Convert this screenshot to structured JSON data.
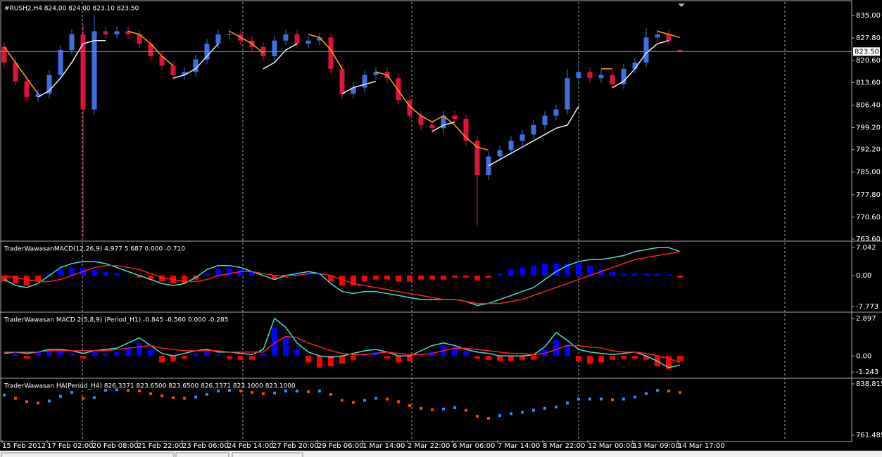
{
  "chart_data": [
    {
      "type": "candlestick",
      "title": "#RUSH2,H4  824.00 824.00 823.10 823.50",
      "categories": [
        "15 Feb 2012",
        null,
        null,
        null,
        "17 Feb 02:00",
        null,
        null,
        null,
        "20 Feb 08:00",
        null,
        null,
        null,
        "21 Feb 22:00",
        null,
        null,
        null,
        "23 Feb 06:00",
        null,
        null,
        null,
        "24 Feb 14:00",
        null,
        null,
        null,
        "27 Feb 20:00",
        null,
        null,
        null,
        "29 Feb 06:00",
        null,
        null,
        null,
        "1 Mar 14:00",
        null,
        null,
        null,
        "2 Mar 22:00",
        null,
        null,
        null,
        "6 Mar 06:00",
        null,
        null,
        null,
        "7 Mar 14:00",
        null,
        null,
        null,
        "8 Mar 22:00",
        null,
        null,
        null,
        "12 Mar 00:00",
        null,
        null,
        null,
        "13 Mar 09:00",
        null,
        null,
        null,
        "14 Mar 17:00"
      ],
      "open": [
        825,
        820,
        814,
        809,
        810,
        816,
        824,
        829,
        805,
        830,
        829,
        830,
        829,
        826,
        822,
        819,
        816,
        817,
        821,
        826,
        829,
        829,
        827,
        825,
        822,
        827,
        829,
        826,
        827,
        828,
        818,
        810,
        812,
        816,
        817,
        815,
        808,
        803,
        800,
        799,
        803,
        802,
        795,
        784,
        790,
        792,
        795,
        797,
        800,
        803,
        805,
        815,
        817,
        815,
        816,
        813,
        818,
        820,
        828,
        829,
        824
      ],
      "high": [
        826.5,
        821.5,
        815.5,
        811.5,
        817.5,
        825.5,
        830.5,
        832,
        835,
        831.5,
        831.5,
        831.5,
        830.5,
        827.5,
        823.5,
        820.5,
        818.5,
        822.5,
        827.5,
        830.5,
        830.5,
        830.5,
        828.5,
        826.5,
        828.5,
        830.5,
        830.5,
        828.5,
        829.5,
        829.5,
        819.5,
        813.5,
        817.5,
        818.5,
        818.5,
        816.5,
        809.5,
        804.5,
        801.5,
        804.5,
        804.5,
        803.5,
        796.5,
        791.5,
        793.5,
        796.5,
        798.5,
        801.5,
        804.5,
        806.5,
        818,
        820,
        818.5,
        818,
        817.5,
        819.5,
        821.5,
        831,
        830.5,
        830.5,
        824
      ],
      "low": [
        818.5,
        812.5,
        807.5,
        807.5,
        808.5,
        814.5,
        822.5,
        764,
        803.5,
        827.5,
        827.5,
        827.5,
        824.5,
        820.5,
        817.5,
        814.5,
        814.5,
        815.5,
        819.5,
        824.5,
        827.5,
        825.5,
        823.5,
        820.5,
        820.5,
        825.5,
        824.5,
        824.5,
        825.5,
        816.5,
        808.5,
        808.5,
        810.5,
        814.5,
        813.5,
        806.5,
        801.5,
        798.5,
        797.5,
        797.5,
        800.5,
        793.5,
        768,
        782.5,
        788.5,
        790.5,
        793.5,
        795.5,
        798.5,
        801.5,
        803.5,
        813.5,
        813.5,
        813.5,
        811.5,
        811.5,
        816.5,
        818.5,
        826.5,
        825.5,
        823.1
      ],
      "close": [
        820,
        814,
        809,
        810,
        816,
        824,
        829,
        805,
        830,
        829,
        830,
        829,
        826,
        822,
        819,
        816,
        817,
        821,
        826,
        829,
        829,
        827,
        825,
        822,
        827,
        829,
        826,
        827,
        828,
        818,
        810,
        812,
        816,
        817,
        815,
        808,
        803,
        800,
        799,
        803,
        802,
        795,
        784,
        790,
        792,
        795,
        797,
        800,
        803,
        805,
        815,
        817,
        815,
        816,
        813,
        818,
        820,
        828,
        829,
        827,
        823.5
      ],
      "up_color": "#3f6fe0",
      "down_color": "#dc143c",
      "overlays": [
        {
          "color": "#ffa500",
          "values": [
            825,
            820,
            815,
            810,
            null,
            null,
            null,
            null,
            null,
            null,
            null,
            830,
            829,
            826,
            822,
            819,
            null,
            null,
            null,
            null,
            830,
            828,
            826,
            823,
            null,
            null,
            null,
            829,
            828,
            824,
            818,
            null,
            null,
            817,
            816,
            811,
            806,
            803,
            801,
            803,
            800,
            796,
            793,
            792,
            null,
            null,
            null,
            null,
            null,
            null,
            null,
            null,
            null,
            818,
            818,
            null,
            null,
            null,
            830,
            829,
            828
          ]
        },
        {
          "color": "#e8f0ff",
          "values": [
            null,
            null,
            null,
            809,
            811,
            815,
            820,
            826,
            827,
            827,
            null,
            null,
            null,
            null,
            null,
            815,
            816,
            818,
            822,
            826,
            null,
            null,
            null,
            818,
            820,
            824,
            826,
            null,
            null,
            null,
            810,
            812,
            813,
            814,
            null,
            null,
            null,
            null,
            798,
            800,
            801,
            null,
            null,
            787,
            789,
            791,
            793,
            795,
            797,
            799,
            800,
            806,
            null,
            null,
            812,
            814,
            818,
            823,
            826,
            827,
            null
          ]
        }
      ],
      "last_price": {
        "value": 823.5,
        "label": "823.50"
      },
      "ylim": [
        763.15,
        839.3
      ],
      "yticks": [
        {
          "value": 835,
          "label": "835.00"
        },
        {
          "value": 827.8,
          "label": "827.80"
        },
        {
          "value": 820.6,
          "label": "820.60"
        },
        {
          "value": 813.6,
          "label": "813.60"
        },
        {
          "value": 806.4,
          "label": "806.40"
        },
        {
          "value": 799.2,
          "label": "799.20"
        },
        {
          "value": 792.2,
          "label": "792.20"
        },
        {
          "value": 785,
          "label": "785.00"
        },
        {
          "value": 777.8,
          "label": "777.80"
        },
        {
          "value": 770.6,
          "label": "770.60"
        },
        {
          "value": 763.6,
          "label": "763.60"
        }
      ]
    },
    {
      "type": "macd",
      "title": "TraderWawasanMACD(12,26,9) 4.977 5.687 0.000 -0.710",
      "histogram": {
        "up_color": "#0000ff",
        "down_color": "#ff0000",
        "values": [
          -1.5,
          -2,
          -2.5,
          -1.5,
          0.5,
          1.5,
          2,
          2,
          1.5,
          1,
          0.5,
          0,
          -0.5,
          -1,
          -1.5,
          -2,
          -2,
          -1,
          0.5,
          1.5,
          2,
          1.5,
          1,
          0,
          -1,
          -0.5,
          0.3,
          0.5,
          0.3,
          -1.5,
          -2.5,
          -2.5,
          -1.5,
          -1,
          -1,
          -1.5,
          -1.5,
          -1,
          -1,
          -1,
          -0.5,
          -0.5,
          -1.2,
          -0.5,
          0.5,
          1.5,
          2,
          2.5,
          3,
          3,
          3,
          3,
          2.5,
          1.5,
          1,
          0.5,
          0.5,
          0.5,
          0.5,
          0.3,
          -0.5
        ]
      },
      "lines": [
        {
          "color": "#40e0d0",
          "values": [
            -1,
            -2.5,
            -3,
            -2,
            0,
            2,
            3,
            3.5,
            3.5,
            3,
            2,
            1,
            0,
            -1,
            -2,
            -2.5,
            -2,
            -0.5,
            1.5,
            2.5,
            2.5,
            2,
            1,
            0,
            -1,
            0,
            0.5,
            1,
            0.5,
            -2,
            -4,
            -4.5,
            -4,
            -4,
            -4.5,
            -5,
            -5.5,
            -6,
            -6,
            -6,
            -6,
            -6.5,
            -7.5,
            -7,
            -6,
            -5,
            -4,
            -3,
            -1,
            1,
            2.5,
            3.5,
            4,
            4,
            4.5,
            5,
            6,
            6.5,
            7,
            7,
            6
          ]
        },
        {
          "color": "#ff2020",
          "values": [
            0,
            -0.5,
            -1,
            -1.5,
            -1.5,
            -1,
            0,
            1,
            2,
            2.5,
            2.5,
            2,
            1.5,
            0.5,
            -0.5,
            -1,
            -1.5,
            -1.5,
            -1,
            0,
            0.5,
            1,
            1,
            0.5,
            0,
            0,
            0,
            0.5,
            0.5,
            0,
            -1,
            -2,
            -2.5,
            -3,
            -3.5,
            -4,
            -4.5,
            -5,
            -5.5,
            -6,
            -6,
            -6.5,
            -7,
            -7,
            -7,
            -6.5,
            -6,
            -5,
            -4,
            -3,
            -2,
            -1,
            0,
            1,
            2,
            3,
            4,
            4.5,
            5,
            5.5,
            6
          ]
        }
      ],
      "ylim": [
        -8.83,
        8.27
      ],
      "yticks": [
        7.042,
        {
          "value": 0,
          "label": "0.00"
        },
        -7.773
      ]
    },
    {
      "type": "macd",
      "title": "TraderWawasan MACD 2(5,8,9) (Period_H1) -0.845 -0.560 0.000 -0.285",
      "histogram": {
        "up_color": "#0000ff",
        "down_color": "#ff0000",
        "values": [
          0,
          0.3,
          -0.2,
          0.3,
          0.4,
          0.3,
          0.2,
          -0.2,
          0.3,
          0.2,
          0.3,
          0.6,
          1,
          0.5,
          -0.5,
          -0.4,
          -0.2,
          0.2,
          0.3,
          0.1,
          -0.2,
          -0.3,
          -0.3,
          0.2,
          2.2,
          1.5,
          0.5,
          -0.5,
          -0.9,
          -0.8,
          -0.6,
          -0.3,
          0.2,
          0.3,
          -0.2,
          -0.5,
          -0.4,
          0.1,
          0.3,
          0.8,
          0.7,
          0.4,
          -0.2,
          -0.3,
          -0.4,
          -0.4,
          -0.3,
          -0.3,
          0.5,
          1.2,
          0.9,
          -0.4,
          -0.6,
          -0.5,
          -0.3,
          -0.2,
          -0.2,
          -0.3,
          -0.8,
          -1.0,
          -0.4
        ]
      },
      "lines": [
        {
          "color": "#40e0d0",
          "values": [
            0.2,
            0.3,
            0.2,
            0.3,
            0.5,
            0.5,
            0.4,
            0.2,
            0.4,
            0.5,
            0.6,
            1,
            1.4,
            0.8,
            0.2,
            0,
            0.2,
            0.4,
            0.5,
            0.3,
            0.3,
            0.2,
            0.1,
            0.5,
            2.9,
            2.2,
            1,
            0.3,
            0,
            -0.1,
            0,
            0.2,
            0.4,
            0.5,
            0.3,
            0,
            0,
            0.4,
            0.8,
            1,
            0.8,
            0.5,
            0.3,
            0.2,
            0,
            0,
            0,
            0.1,
            0.7,
            1.8,
            1.2,
            0.5,
            0.3,
            0.2,
            0.1,
            0.2,
            0.3,
            0,
            -0.4,
            -0.9,
            -0.7
          ]
        },
        {
          "color": "#ff2020",
          "values": [
            0.3,
            0.3,
            0.3,
            0.3,
            0.4,
            0.4,
            0.4,
            0.4,
            0.4,
            0.4,
            0.5,
            0.6,
            0.7,
            0.8,
            0.6,
            0.5,
            0.4,
            0.4,
            0.4,
            0.4,
            0.3,
            0.3,
            0.3,
            0.3,
            1,
            1.5,
            1.4,
            1,
            0.7,
            0.4,
            0.2,
            0.1,
            0.1,
            0.2,
            0.3,
            0.2,
            0.1,
            0.1,
            0.2,
            0.4,
            0.6,
            0.6,
            0.5,
            0.4,
            0.3,
            0.2,
            0.2,
            0.1,
            0.2,
            0.5,
            0.8,
            0.8,
            0.7,
            0.6,
            0.4,
            0.3,
            0.3,
            0.2,
            0,
            -0.2,
            -0.5
          ]
        }
      ],
      "ylim": [
        -1.612,
        3.266
      ],
      "yticks": [
        2.897,
        {
          "value": 0,
          "label": "0.00"
        },
        -1.243
      ]
    },
    {
      "type": "ha",
      "title": "TraderWawasan HA(Period_H4) 826.3371 823.6500 823.6500 826.3371 823.1000 823.1000",
      "up_color": "#1e90ff",
      "down_color": "#ff4500",
      "values": [
        822,
        817,
        812,
        810,
        813,
        820,
        826,
        817,
        818,
        829,
        830,
        829,
        828,
        824,
        821,
        818,
        817,
        819,
        823,
        828,
        829,
        828,
        826,
        824,
        825,
        828,
        828,
        827,
        828,
        823,
        814,
        811,
        814,
        817,
        816,
        812,
        806,
        802,
        800,
        801,
        803,
        799,
        790,
        787,
        791,
        794,
        796,
        799,
        802,
        804,
        810,
        816,
        816,
        816,
        815,
        816,
        819,
        824,
        829,
        828,
        826
      ],
      "ylim": [
        754.07,
        845.17
      ],
      "yticks": [
        838.815,
        761.485
      ]
    }
  ]
}
